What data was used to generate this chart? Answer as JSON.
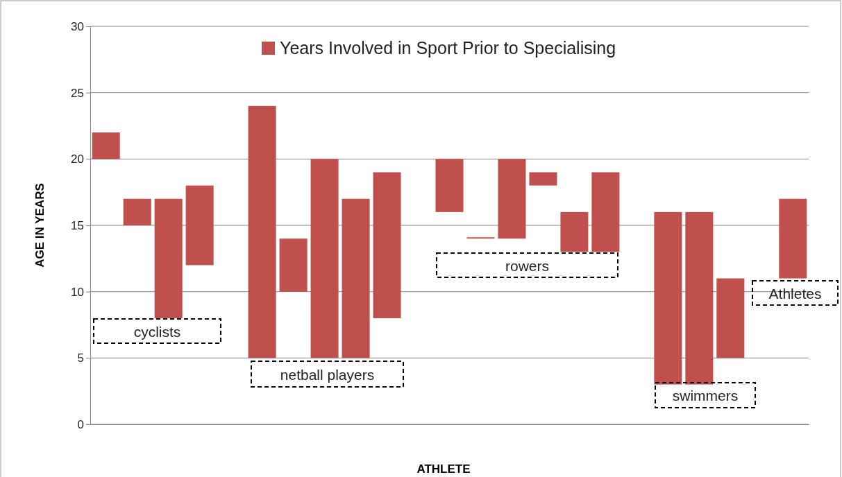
{
  "chart_data": {
    "type": "bar",
    "xlabel": "ATHLETE",
    "ylabel": "AGE IN YEARS",
    "categories": [
      null,
      null,
      null,
      null,
      null,
      null,
      null,
      null,
      null,
      null,
      null,
      null,
      null,
      null,
      null,
      null,
      null,
      null,
      null,
      null,
      null,
      null,
      null
    ],
    "series": [
      {
        "name": "Years Involved in Sport Prior to Specialising",
        "color": "#c0504d",
        "base": [
          20,
          15,
          8,
          12,
          null,
          5,
          10,
          5,
          5,
          8,
          null,
          16,
          14,
          14,
          18,
          13,
          13,
          null,
          3,
          3,
          5,
          null,
          11
        ],
        "values": [
          2,
          2,
          9,
          6,
          null,
          19,
          4,
          15,
          12,
          11,
          null,
          4,
          0.1,
          6,
          1,
          3,
          6,
          null,
          13,
          13,
          6,
          null,
          6
        ]
      }
    ],
    "ylim": [
      0,
      30
    ],
    "yticks": [
      0,
      5,
      10,
      15,
      20,
      25,
      30
    ],
    "grid": "y",
    "legend": "top",
    "annotations": [
      "cyclists",
      "netball players",
      "rowers",
      "swimmers",
      "Athletes"
    ]
  }
}
